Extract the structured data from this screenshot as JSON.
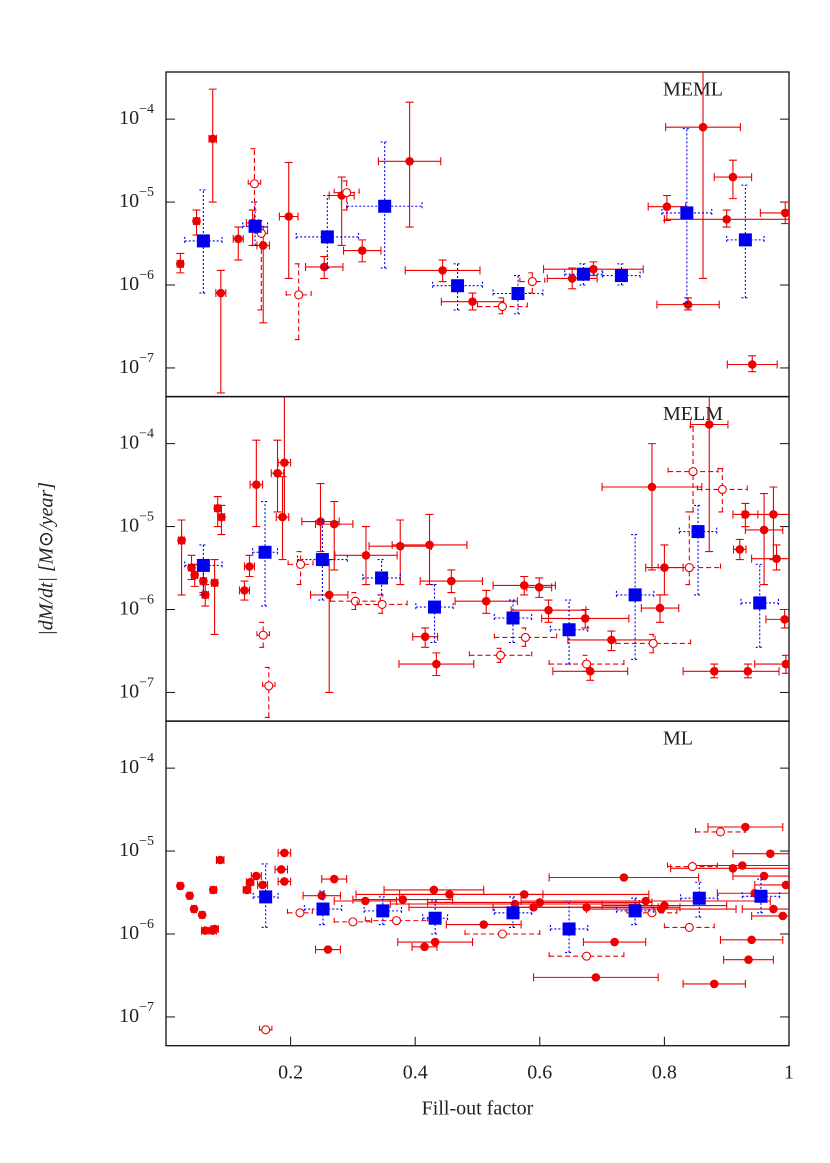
{
  "chart_data": [
    {
      "type": "scatter",
      "panel_label": "MEML",
      "log_y": true,
      "xlim": [
        0,
        1
      ],
      "ylim": [
        4.5e-08,
        0.00037
      ],
      "yticks": [
        {
          "value": 0.0001,
          "label": "10−4"
        },
        {
          "value": 1e-05,
          "label": "10−5"
        },
        {
          "value": 1e-06,
          "label": "10−6"
        },
        {
          "value": 1e-07,
          "label": "10−7"
        }
      ],
      "series": [
        {
          "marker": "filled",
          "color": "#ee0000",
          "line_style": "solid",
          "x": [
            0.023,
            0.049,
            0.075,
            0.088,
            0.116,
            0.139,
            0.156,
            0.197,
            0.254,
            0.282,
            0.315,
            0.391,
            0.444,
            0.492,
            0.652,
            0.686,
            0.804,
            0.838,
            0.862,
            0.91,
            0.9,
            0.941,
            0.994
          ],
          "values": [
            1.8e-06,
            5.9e-06,
            5.8e-05,
            8e-07,
            3.6e-06,
            5.6e-06,
            3e-06,
            6.7e-06,
            1.65e-06,
            1.2e-05,
            2.6e-06,
            3.1e-05,
            1.5e-06,
            6.3e-07,
            1.2e-06,
            1.55e-06,
            8.8e-06,
            5.8e-07,
            8e-05,
            2e-05,
            6.2e-06,
            1.1e-07,
            7.4e-06
          ],
          "xerr": [
            0.005,
            0.005,
            0.006,
            0.008,
            0.008,
            0.01,
            0.01,
            0.015,
            0.03,
            0.02,
            0.03,
            0.05,
            0.06,
            0.05,
            0.04,
            0.08,
            0.03,
            0.05,
            0.06,
            0.03,
            0.1,
            0.04,
            0.04
          ],
          "ylow": [
            1.4e-06,
            4e-06,
            1e-05,
            5e-08,
            2e-06,
            3e-06,
            3.5e-07,
            1.2e-06,
            1.2e-06,
            3e-06,
            1.9e-06,
            5e-06,
            1.1e-06,
            5e-07,
            9e-07,
            1.3e-06,
            6e-06,
            5e-07,
            1.2e-06,
            1.1e-05,
            5e-06,
            9e-08,
            5.5e-06
          ],
          "yhigh": [
            2.4e-06,
            8e-06,
            0.00023,
            1.5e-06,
            5e-06,
            8e-06,
            5e-06,
            3e-05,
            2.2e-06,
            2e-05,
            3.5e-06,
            0.00016,
            2e-06,
            8e-07,
            1.6e-06,
            1.9e-06,
            1.2e-05,
            7e-07,
            0.0004,
            3.2e-05,
            8e-06,
            1.4e-07,
            1e-05
          ]
        },
        {
          "marker": "open",
          "color": "#ee0000",
          "line_style": "dashed",
          "x": [
            0.142,
            0.153,
            0.213,
            0.29,
            0.54,
            0.588
          ],
          "values": [
            1.66e-05,
            4.2e-06,
            7.6e-07,
            1.3e-05,
            5.5e-07,
            1.1e-06
          ],
          "xerr": [
            0.01,
            0.01,
            0.02,
            0.02,
            0.04,
            0.02
          ],
          "ylow": [
            5e-06,
            5e-07,
            2.2e-07,
            8e-06,
            4.5e-07,
            8e-07
          ],
          "yhigh": [
            4.4e-05,
            6e-06,
            1.8e-06,
            1.8e-05,
            7e-07,
            1.4e-06
          ]
        },
        {
          "marker": "square",
          "color": "#0000ee",
          "line_style": "dotted",
          "x": [
            0.06,
            0.143,
            0.259,
            0.351,
            0.468,
            0.565,
            0.67,
            0.731,
            0.836,
            0.93
          ],
          "values": [
            3.4e-06,
            5.1e-06,
            3.8e-06,
            8.9e-06,
            9.8e-07,
            7.9e-07,
            1.35e-06,
            1.3e-06,
            7.4e-06,
            3.5e-06
          ],
          "xerr": [
            0.03,
            0.02,
            0.05,
            0.06,
            0.04,
            0.04,
            0.03,
            0.03,
            0.04,
            0.03
          ],
          "ylow": [
            8e-07,
            3e-06,
            1.6e-06,
            1.6e-06,
            5e-07,
            4.5e-07,
            1e-06,
            1e-06,
            6e-07,
            7e-07
          ],
          "yhigh": [
            1.4e-05,
            1e-05,
            1.2e-05,
            5.3e-05,
            1.8e-06,
            1.3e-06,
            1.8e-06,
            1.8e-06,
            7.7e-05,
            1.6e-05
          ]
        }
      ]
    },
    {
      "type": "scatter",
      "panel_label": "MELM",
      "log_y": true,
      "xlim": [
        0,
        1
      ],
      "ylim": [
        4.5e-08,
        0.00037
      ],
      "ylabel": "|dM/dt| [M⊙/year]",
      "yticks": [
        {
          "value": 0.0001,
          "label": "10−4"
        },
        {
          "value": 1e-05,
          "label": "10−5"
        },
        {
          "value": 1e-06,
          "label": "10−6"
        },
        {
          "value": 1e-07,
          "label": "10−7"
        }
      ],
      "series": [
        {
          "marker": "filled",
          "color": "#ee0000",
          "line_style": "solid",
          "x": [
            0.025,
            0.041,
            0.046,
            0.06,
            0.063,
            0.078,
            0.083,
            0.089,
            0.126,
            0.134,
            0.145,
            0.179,
            0.187,
            0.19,
            0.248,
            0.262,
            0.27,
            0.321,
            0.376,
            0.423,
            0.416,
            0.434,
            0.458,
            0.514,
            0.575,
            0.599,
            0.614,
            0.673,
            0.681,
            0.715,
            0.78,
            0.793,
            0.8,
            0.872,
            0.88,
            0.921,
            0.93,
            0.934,
            0.96,
            0.975,
            0.98,
            0.993,
            0.995
          ],
          "values": [
            6.8e-06,
            3.2e-06,
            2.6e-06,
            2.2e-06,
            1.5e-06,
            2.1e-06,
            1.66e-05,
            1.3e-05,
            1.7e-06,
            3.3e-06,
            3.2e-05,
            4.4e-05,
            1.3e-05,
            5.9e-05,
            1.15e-05,
            1.5e-06,
            1.07e-05,
            4.5e-06,
            5.8e-06,
            6e-06,
            4.7e-07,
            2.2e-07,
            2.2e-06,
            1.26e-06,
            1.95e-06,
            1.85e-06,
            9.8e-07,
            7.8e-07,
            1.8e-07,
            4.3e-07,
            3e-05,
            1.04e-06,
            3.2e-06,
            0.00017,
            1.8e-07,
            5.3e-06,
            1.4e-05,
            1.8e-07,
            9.1e-06,
            1.4e-05,
            4.1e-06,
            7.6e-07,
            2.2e-07
          ],
          "xerr": [
            0.005,
            0.005,
            0.005,
            0.005,
            0.005,
            0.005,
            0.005,
            0.005,
            0.008,
            0.008,
            0.01,
            0.01,
            0.01,
            0.01,
            0.03,
            0.03,
            0.03,
            0.05,
            0.05,
            0.06,
            0.02,
            0.06,
            0.05,
            0.05,
            0.05,
            0.02,
            0.06,
            0.07,
            0.06,
            0.07,
            0.08,
            0.03,
            0.03,
            0.03,
            0.05,
            0.01,
            0.02,
            0.05,
            0.03,
            0.05,
            0.04,
            0.03,
            0.05
          ],
          "ylow": [
            1.5e-06,
            2.3e-06,
            1.9e-06,
            1.6e-06,
            1.1e-06,
            5e-07,
            1e-05,
            8e-06,
            1.3e-06,
            2.5e-06,
            1e-05,
            1.5e-05,
            4e-06,
            1.3e-05,
            5e-06,
            1e-07,
            3e-06,
            2e-06,
            2e-06,
            2e-06,
            3.5e-07,
            1.6e-07,
            1.6e-06,
            9e-07,
            1.5e-06,
            1.4e-06,
            7e-07,
            6e-07,
            1.4e-07,
            3.2e-07,
            3e-06,
            7e-07,
            1.5e-06,
            5e-06,
            1.5e-07,
            4e-06,
            1e-05,
            1.5e-07,
            2e-06,
            4e-06,
            3e-06,
            6e-07,
            1.7e-07
          ],
          "yhigh": [
            1.2e-05,
            4.5e-06,
            3.5e-06,
            3e-06,
            2e-06,
            4e-06,
            2.3e-05,
            1.8e-05,
            2.2e-06,
            4.5e-06,
            0.00011,
            0.00011,
            4e-05,
            0.0004,
            3.3e-05,
            4e-06,
            2e-05,
            1e-05,
            1.2e-05,
            1.4e-05,
            6e-07,
            3e-07,
            3e-06,
            1.7e-06,
            2.5e-06,
            2.4e-06,
            1.3e-06,
            1e-06,
            2.2e-07,
            5.5e-07,
            0.0001,
            1.5e-06,
            6e-06,
            0.0004,
            2.2e-07,
            7e-06,
            1.9e-05,
            2.2e-07,
            2.5e-05,
            3e-05,
            6e-06,
            1e-06,
            2.8e-07
          ]
        },
        {
          "marker": "open",
          "color": "#ee0000",
          "line_style": "dashed",
          "x": [
            0.156,
            0.165,
            0.216,
            0.304,
            0.347,
            0.537,
            0.577,
            0.675,
            0.782,
            0.84,
            0.846,
            0.893
          ],
          "values": [
            4.9e-07,
            1.2e-07,
            3.5e-06,
            1.26e-06,
            1.15e-06,
            2.8e-07,
            4.6e-07,
            2.2e-07,
            3.9e-07,
            3.2e-06,
            4.6e-05,
            2.8e-05
          ],
          "xerr": [
            0.01,
            0.01,
            0.02,
            0.04,
            0.04,
            0.05,
            0.05,
            0.06,
            0.06,
            0.05,
            0.04,
            0.04
          ],
          "ylow": [
            3.5e-07,
            5e-08,
            2e-06,
            1e-06,
            9e-07,
            2.3e-07,
            3.6e-07,
            1.8e-07,
            3e-07,
            2e-06,
            1.5e-05,
            1.5e-05
          ],
          "yhigh": [
            7e-07,
            2e-07,
            5e-06,
            1.6e-06,
            1.5e-06,
            3.4e-07,
            6e-07,
            2.8e-07,
            5e-07,
            1.5e-05,
            0.00016,
            5e-05
          ]
        },
        {
          "marker": "square",
          "color": "#0000ee",
          "line_style": "dotted",
          "x": [
            0.06,
            0.159,
            0.251,
            0.346,
            0.431,
            0.557,
            0.647,
            0.753,
            0.854,
            0.953
          ],
          "values": [
            3.4e-06,
            4.9e-06,
            4e-06,
            2.4e-06,
            1.07e-06,
            7.9e-07,
            5.7e-07,
            1.5e-06,
            8.7e-06,
            1.2e-06
          ],
          "xerr": [
            0.03,
            0.02,
            0.04,
            0.03,
            0.03,
            0.03,
            0.03,
            0.03,
            0.03,
            0.03
          ],
          "ylow": [
            1.5e-06,
            1.1e-06,
            1.3e-06,
            1.5e-06,
            4e-07,
            4e-07,
            2.2e-07,
            2.5e-07,
            1.5e-06,
            3.5e-07
          ],
          "yhigh": [
            6e-06,
            2e-05,
            1.2e-05,
            4e-06,
            2e-06,
            1.3e-06,
            1.3e-06,
            8e-06,
            1.8e-05,
            3.5e-06
          ]
        }
      ]
    },
    {
      "type": "scatter",
      "panel_label": "ML",
      "log_y": true,
      "xlim": [
        0,
        1
      ],
      "ylim": [
        4.5e-08,
        0.00037
      ],
      "xlabel": "Fill-out factor",
      "xticks": [
        0.2,
        0.4,
        0.6,
        0.8,
        1
      ],
      "yticks": [
        {
          "value": 0.0001,
          "label": "10−4"
        },
        {
          "value": 1e-05,
          "label": "10−5"
        },
        {
          "value": 1e-06,
          "label": "10−6"
        },
        {
          "value": 1e-07,
          "label": "10−7"
        }
      ],
      "series": [
        {
          "marker": "filled",
          "color": "#ee0000",
          "line_style": "solid",
          "x": [
            0.023,
            0.038,
            0.045,
            0.058,
            0.063,
            0.075,
            0.078,
            0.076,
            0.087,
            0.13,
            0.135,
            0.145,
            0.155,
            0.185,
            0.19,
            0.19,
            0.25,
            0.26,
            0.27,
            0.32,
            0.38,
            0.415,
            0.43,
            0.432,
            0.455,
            0.51,
            0.56,
            0.575,
            0.59,
            0.6,
            0.69,
            0.675,
            0.72,
            0.735,
            0.77,
            0.795,
            0.8,
            0.88,
            0.91,
            0.93,
            0.925,
            0.935,
            0.94,
            0.945,
            0.96,
            0.97,
            0.975,
            0.99,
            0.995
          ],
          "values": [
            3.8e-06,
            2.9e-06,
            2e-06,
            1.7e-06,
            1.1e-06,
            1.1e-06,
            1.15e-06,
            3.4e-06,
            7.8e-06,
            3.4e-06,
            4.2e-06,
            5e-06,
            3.9e-06,
            6e-06,
            9.5e-06,
            4.3e-06,
            2.9e-06,
            6.5e-07,
            4.6e-06,
            2.5e-06,
            2.6e-06,
            7e-07,
            3.4e-06,
            8e-07,
            3e-06,
            1.3e-06,
            2.3e-06,
            3e-06,
            2.1e-06,
            2.4e-06,
            3e-07,
            2.1e-06,
            8e-07,
            4.8e-06,
            2.5e-06,
            2e-06,
            2.2e-06,
            2.5e-07,
            6.2e-06,
            1.95e-05,
            6.7e-06,
            4.9e-07,
            8.5e-07,
            3.1e-06,
            5e-06,
            9.3e-06,
            2e-06,
            1.65e-06,
            3.9e-06
          ],
          "xerr": [
            0.004,
            0.004,
            0.004,
            0.004,
            0.006,
            0.006,
            0.006,
            0.005,
            0.006,
            0.006,
            0.006,
            0.008,
            0.008,
            0.01,
            0.01,
            0.01,
            0.03,
            0.02,
            0.02,
            0.05,
            0.08,
            0.02,
            0.08,
            0.06,
            0.15,
            0.06,
            0.2,
            0.2,
            0.2,
            0.18,
            0.1,
            0.15,
            0.05,
            0.12,
            0.2,
            0.12,
            0.1,
            0.05,
            0.1,
            0.06,
            0.08,
            0.04,
            0.05,
            0.06,
            0.05,
            0.06,
            0.05,
            0.05,
            0.05
          ]
        },
        {
          "marker": "open",
          "color": "#ee0000",
          "line_style": "dashed",
          "x": [
            0.16,
            0.215,
            0.3,
            0.37,
            0.54,
            0.675,
            0.78,
            0.84,
            0.845,
            0.89
          ],
          "values": [
            7e-08,
            1.8e-06,
            1.4e-06,
            1.45e-06,
            1e-06,
            5.4e-07,
            1.8e-06,
            1.2e-06,
            6.5e-06,
            1.7e-05
          ],
          "xerr": [
            0.01,
            0.02,
            0.03,
            0.05,
            0.06,
            0.06,
            0.04,
            0.04,
            0.04,
            0.04
          ]
        },
        {
          "marker": "square",
          "color": "#0000ee",
          "line_style": "dotted",
          "x": [
            0.16,
            0.252,
            0.348,
            0.432,
            0.557,
            0.647,
            0.753,
            0.856,
            0.955
          ],
          "values": [
            2.8e-06,
            2e-06,
            1.9e-06,
            1.55e-06,
            1.8e-06,
            1.15e-06,
            1.9e-06,
            2.7e-06,
            2.85e-06
          ],
          "xerr": [
            0.02,
            0.03,
            0.03,
            0.02,
            0.03,
            0.03,
            0.03,
            0.03,
            0.03
          ],
          "ylow": [
            1.2e-06,
            1.3e-06,
            1.3e-06,
            1e-06,
            1.2e-06,
            6e-07,
            1.3e-06,
            1.6e-06,
            1.8e-06
          ],
          "yhigh": [
            7e-06,
            3.3e-06,
            2.8e-06,
            2.5e-06,
            2.8e-06,
            2.5e-06,
            2.7e-06,
            4.2e-06,
            4.6e-06
          ]
        }
      ]
    }
  ]
}
